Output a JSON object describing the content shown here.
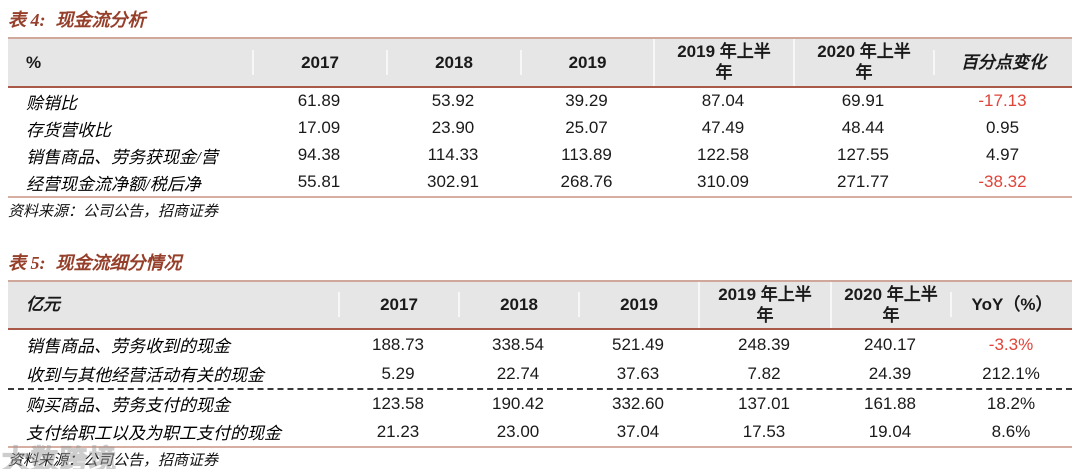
{
  "colors": {
    "title_accent": "#96402c",
    "negative_value": "#e04338",
    "header_background": "#e6e6e6",
    "table_border_light": "#cfa79b",
    "table_border_dark": "#a85948"
  },
  "table4": {
    "label": "表 4:",
    "title": "现金流分析",
    "headers": [
      "%",
      "2017",
      "2018",
      "2019",
      "2019 年上半年",
      "2020 年上半年",
      "百分点变化"
    ],
    "rows": [
      {
        "label": "赊销比",
        "values": [
          "61.89",
          "53.92",
          "39.29",
          "87.04",
          "69.91",
          "-17.13"
        ]
      },
      {
        "label": "存货营收比",
        "values": [
          "17.09",
          "23.90",
          "25.07",
          "47.49",
          "48.44",
          "0.95"
        ]
      },
      {
        "label": "销售商品、劳务获现金/营",
        "values": [
          "94.38",
          "114.33",
          "113.89",
          "122.58",
          "127.55",
          "4.97"
        ]
      },
      {
        "label": "经营现金流净额/税后净",
        "values": [
          "55.81",
          "302.91",
          "268.76",
          "310.09",
          "271.77",
          "-38.32"
        ]
      }
    ],
    "source": "资料来源：公司公告，招商证券"
  },
  "table5": {
    "label": "表 5:",
    "title": "现金流细分情况",
    "headers": [
      "亿元",
      "2017",
      "2018",
      "2019",
      "2019 年上半年",
      "2020 年上半年",
      "YoY（%）"
    ],
    "rows": [
      {
        "label": "销售商品、劳务收到的现金",
        "values": [
          "188.73",
          "338.54",
          "521.49",
          "248.39",
          "240.17",
          "-3.3%"
        ]
      },
      {
        "label": "收到与其他经营活动有关的现金",
        "values": [
          "5.29",
          "22.74",
          "37.63",
          "7.82",
          "24.39",
          "212.1%"
        ]
      },
      {
        "label": "购买商品、劳务支付的现金",
        "values": [
          "123.58",
          "190.42",
          "332.60",
          "137.01",
          "161.88",
          "18.2%"
        ]
      },
      {
        "label": "支付给职工以及为职工支付的现金",
        "values": [
          "21.23",
          "23.00",
          "37.04",
          "17.53",
          "19.04",
          "8.6%"
        ]
      }
    ],
    "source": "资料来源：公司公告，招商证券"
  },
  "watermark": {
    "text": "大数跨境"
  }
}
